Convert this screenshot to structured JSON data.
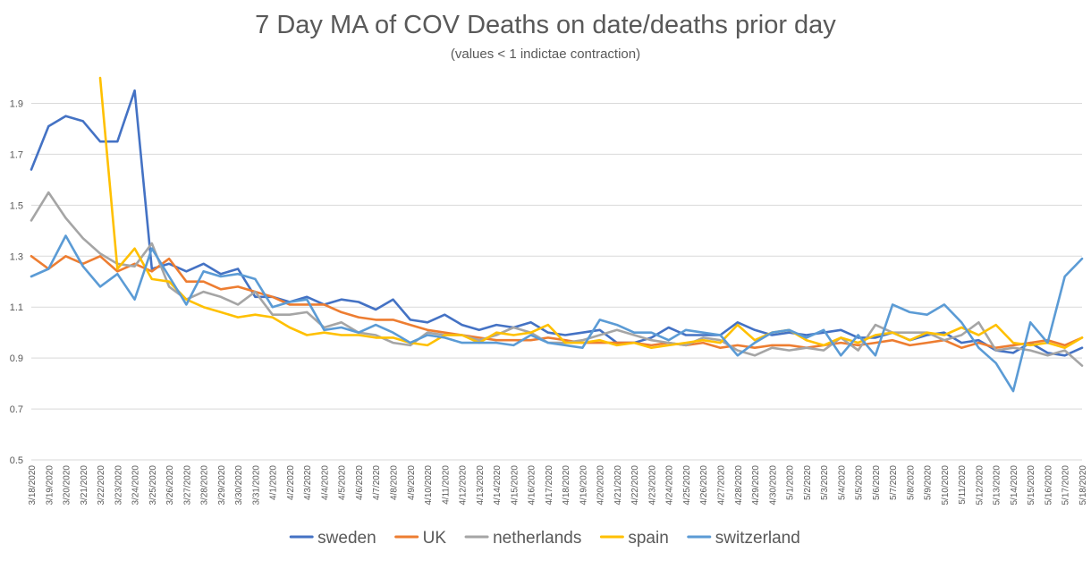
{
  "chart_data": {
    "type": "line",
    "title": "7 Day MA of COV Deaths on date/deaths prior day",
    "subtitle": "(values < 1 indictae contraction)",
    "xlabel": "",
    "ylabel": "",
    "ylim": [
      0.5,
      2.0
    ],
    "yticks": [
      "0.5",
      "0.7",
      "0.9",
      "1.1",
      "1.3",
      "1.5",
      "1.7",
      "1.9"
    ],
    "ytick_values": [
      0.5,
      0.7,
      0.9,
      1.1,
      1.3,
      1.5,
      1.7,
      1.9
    ],
    "grid": true,
    "legend_position": "bottom",
    "x": [
      "3/18/2020",
      "3/19/2020",
      "3/20/2020",
      "3/21/2020",
      "3/22/2020",
      "3/23/2020",
      "3/24/2020",
      "3/25/2020",
      "3/26/2020",
      "3/27/2020",
      "3/28/2020",
      "3/29/2020",
      "3/30/2020",
      "3/31/2020",
      "4/1/2020",
      "4/2/2020",
      "4/3/2020",
      "4/4/2020",
      "4/5/2020",
      "4/6/2020",
      "4/7/2020",
      "4/8/2020",
      "4/9/2020",
      "4/10/2020",
      "4/11/2020",
      "4/12/2020",
      "4/13/2020",
      "4/14/2020",
      "4/15/2020",
      "4/16/2020",
      "4/17/2020",
      "4/18/2020",
      "4/19/2020",
      "4/20/2020",
      "4/21/2020",
      "4/22/2020",
      "4/23/2020",
      "4/24/2020",
      "4/25/2020",
      "4/26/2020",
      "4/27/2020",
      "4/28/2020",
      "4/29/2020",
      "4/30/2020",
      "5/1/2020",
      "5/2/2020",
      "5/3/2020",
      "5/4/2020",
      "5/5/2020",
      "5/6/2020",
      "5/7/2020",
      "5/8/2020",
      "5/9/2020",
      "5/10/2020",
      "5/11/2020",
      "5/12/2020",
      "5/13/2020",
      "5/14/2020",
      "5/15/2020",
      "5/16/2020",
      "5/17/2020",
      "5/18/2020"
    ],
    "series": [
      {
        "name": "sweden",
        "color": "#4472C4",
        "values": [
          1.64,
          1.81,
          1.85,
          1.83,
          1.75,
          1.75,
          1.95,
          1.25,
          1.27,
          1.24,
          1.27,
          1.23,
          1.25,
          1.14,
          1.14,
          1.12,
          1.14,
          1.11,
          1.13,
          1.12,
          1.09,
          1.13,
          1.05,
          1.04,
          1.07,
          1.03,
          1.01,
          1.03,
          1.02,
          1.04,
          1.0,
          0.99,
          1.0,
          1.01,
          0.96,
          0.96,
          0.98,
          1.02,
          0.99,
          0.99,
          0.99,
          1.04,
          1.01,
          0.99,
          1.0,
          0.99,
          1.0,
          1.01,
          0.98,
          0.98,
          1.0,
          0.97,
          0.99,
          1.0,
          0.96,
          0.97,
          0.93,
          0.92,
          0.96,
          0.92,
          0.91,
          0.94
        ]
      },
      {
        "name": "UK",
        "color": "#ED7D31",
        "values": [
          1.3,
          1.25,
          1.3,
          1.27,
          1.3,
          1.24,
          1.27,
          1.24,
          1.29,
          1.2,
          1.2,
          1.17,
          1.18,
          1.16,
          1.14,
          1.11,
          1.11,
          1.11,
          1.08,
          1.06,
          1.05,
          1.05,
          1.03,
          1.01,
          1.0,
          0.99,
          0.98,
          0.97,
          0.97,
          0.97,
          0.98,
          0.97,
          0.96,
          0.96,
          0.96,
          0.96,
          0.95,
          0.96,
          0.95,
          0.96,
          0.94,
          0.95,
          0.94,
          0.95,
          0.95,
          0.94,
          0.95,
          0.96,
          0.95,
          0.96,
          0.97,
          0.95,
          0.96,
          0.97,
          0.94,
          0.96,
          0.94,
          0.95,
          0.96,
          0.97,
          0.95,
          0.98
        ]
      },
      {
        "name": "netherlands",
        "color": "#A5A5A5",
        "values": [
          1.44,
          1.55,
          1.45,
          1.37,
          1.31,
          1.27,
          1.26,
          1.35,
          1.18,
          1.13,
          1.16,
          1.14,
          1.11,
          1.16,
          1.07,
          1.07,
          1.08,
          1.02,
          1.04,
          1.0,
          0.99,
          0.96,
          0.95,
          1.0,
          0.99,
          0.99,
          0.97,
          0.99,
          1.02,
          1.0,
          0.96,
          0.96,
          0.97,
          0.99,
          1.01,
          0.99,
          0.97,
          0.96,
          0.95,
          0.98,
          0.97,
          0.93,
          0.91,
          0.94,
          0.93,
          0.94,
          0.93,
          0.98,
          0.93,
          1.03,
          1.0,
          1.0,
          1.0,
          0.97,
          0.99,
          1.04,
          0.93,
          0.94,
          0.93,
          0.91,
          0.93,
          0.87
        ]
      },
      {
        "name": "spain",
        "color": "#FFC000",
        "values": [
          null,
          null,
          null,
          null,
          2.0,
          1.25,
          1.33,
          1.21,
          1.2,
          1.13,
          1.1,
          1.08,
          1.06,
          1.07,
          1.06,
          1.02,
          0.99,
          1.0,
          0.99,
          0.99,
          0.98,
          0.98,
          0.96,
          0.95,
          0.99,
          0.99,
          0.96,
          1.0,
          0.99,
          1.0,
          1.03,
          0.96,
          0.96,
          0.97,
          0.95,
          0.96,
          0.94,
          0.95,
          0.96,
          0.97,
          0.96,
          1.03,
          0.97,
          1.0,
          1.01,
          0.97,
          0.95,
          0.98,
          0.96,
          0.99,
          1.0,
          0.97,
          1.0,
          0.99,
          1.02,
          0.99,
          1.03,
          0.96,
          0.95,
          0.96,
          0.94,
          0.98
        ]
      },
      {
        "name": "switzerland",
        "color": "#5B9BD5",
        "values": [
          1.22,
          1.25,
          1.38,
          1.26,
          1.18,
          1.23,
          1.13,
          1.33,
          1.22,
          1.11,
          1.24,
          1.22,
          1.23,
          1.21,
          1.1,
          1.12,
          1.13,
          1.01,
          1.02,
          1.0,
          1.03,
          1.0,
          0.96,
          0.99,
          0.98,
          0.96,
          0.96,
          0.96,
          0.95,
          0.99,
          0.96,
          0.95,
          0.94,
          1.05,
          1.03,
          1.0,
          1.0,
          0.97,
          1.01,
          1.0,
          0.99,
          0.91,
          0.96,
          1.0,
          1.01,
          0.98,
          1.01,
          0.91,
          0.99,
          0.91,
          1.11,
          1.08,
          1.07,
          1.11,
          1.04,
          0.94,
          0.88,
          0.77,
          1.04,
          0.96,
          1.22,
          1.29
        ]
      }
    ]
  }
}
